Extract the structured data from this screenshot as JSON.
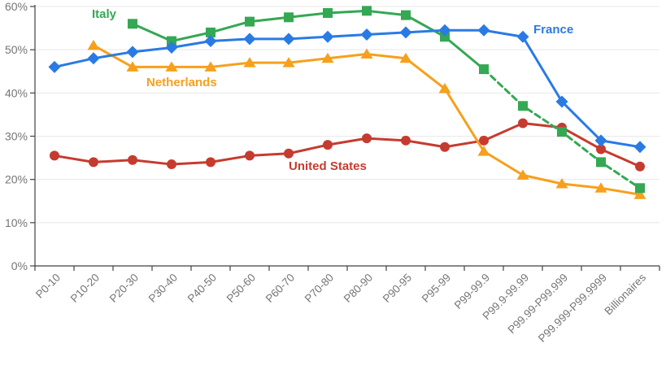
{
  "chart_data": {
    "type": "line",
    "title": "",
    "xlabel": "",
    "ylabel": "",
    "ylim": [
      0,
      60
    ],
    "ytick_step": 10,
    "y_tick_labels": [
      "0%",
      "10%",
      "20%",
      "30%",
      "40%",
      "50%",
      "60%"
    ],
    "ytick_suffix": "%",
    "grid": true,
    "legend_position": "inline-annotations",
    "categories": [
      "P0-10",
      "P10-20",
      "P20-30",
      "P30-40",
      "P40-50",
      "P50-60",
      "P60-70",
      "P70-80",
      "P80-90",
      "P90-95",
      "P95-99",
      "P99-99.9",
      "P99.9-99.99",
      "P99.99-P99.999",
      "P99.999-P99.9999",
      "Billionaires"
    ],
    "series": [
      {
        "name": "United States",
        "color": "#C63B2F",
        "marker": "circle",
        "line_style": "solid",
        "values": [
          25.5,
          24,
          24.5,
          23.5,
          24,
          25.5,
          26,
          28,
          29.5,
          29,
          27.5,
          29,
          33,
          32,
          27,
          23
        ]
      },
      {
        "name": "Netherlands",
        "color": "#F6A01C",
        "marker": "triangle",
        "line_style": "solid",
        "values": [
          null,
          51,
          46,
          46,
          46,
          47,
          47,
          48,
          49,
          48,
          41,
          26.5,
          21,
          19,
          18,
          16.5
        ]
      },
      {
        "name": "Italy",
        "color": "#34A853",
        "marker": "square",
        "line_style": "solid-then-dashed",
        "dashed_from_index": 11,
        "values": [
          null,
          null,
          56,
          52,
          54,
          56.5,
          57.5,
          58.5,
          59,
          58,
          53,
          45.5,
          37,
          31,
          24,
          18
        ]
      },
      {
        "name": "France",
        "color": "#2A7AE4",
        "marker": "diamond",
        "line_style": "solid",
        "values": [
          46,
          48,
          49.5,
          50.5,
          52,
          52.5,
          52.5,
          53,
          53.5,
          54,
          54.5,
          54.5,
          53,
          38,
          29,
          27.5
        ]
      }
    ]
  },
  "style": {
    "grid_color": "#E8E8E8",
    "axis_color": "#424242",
    "tick_label_color": "#757575"
  }
}
